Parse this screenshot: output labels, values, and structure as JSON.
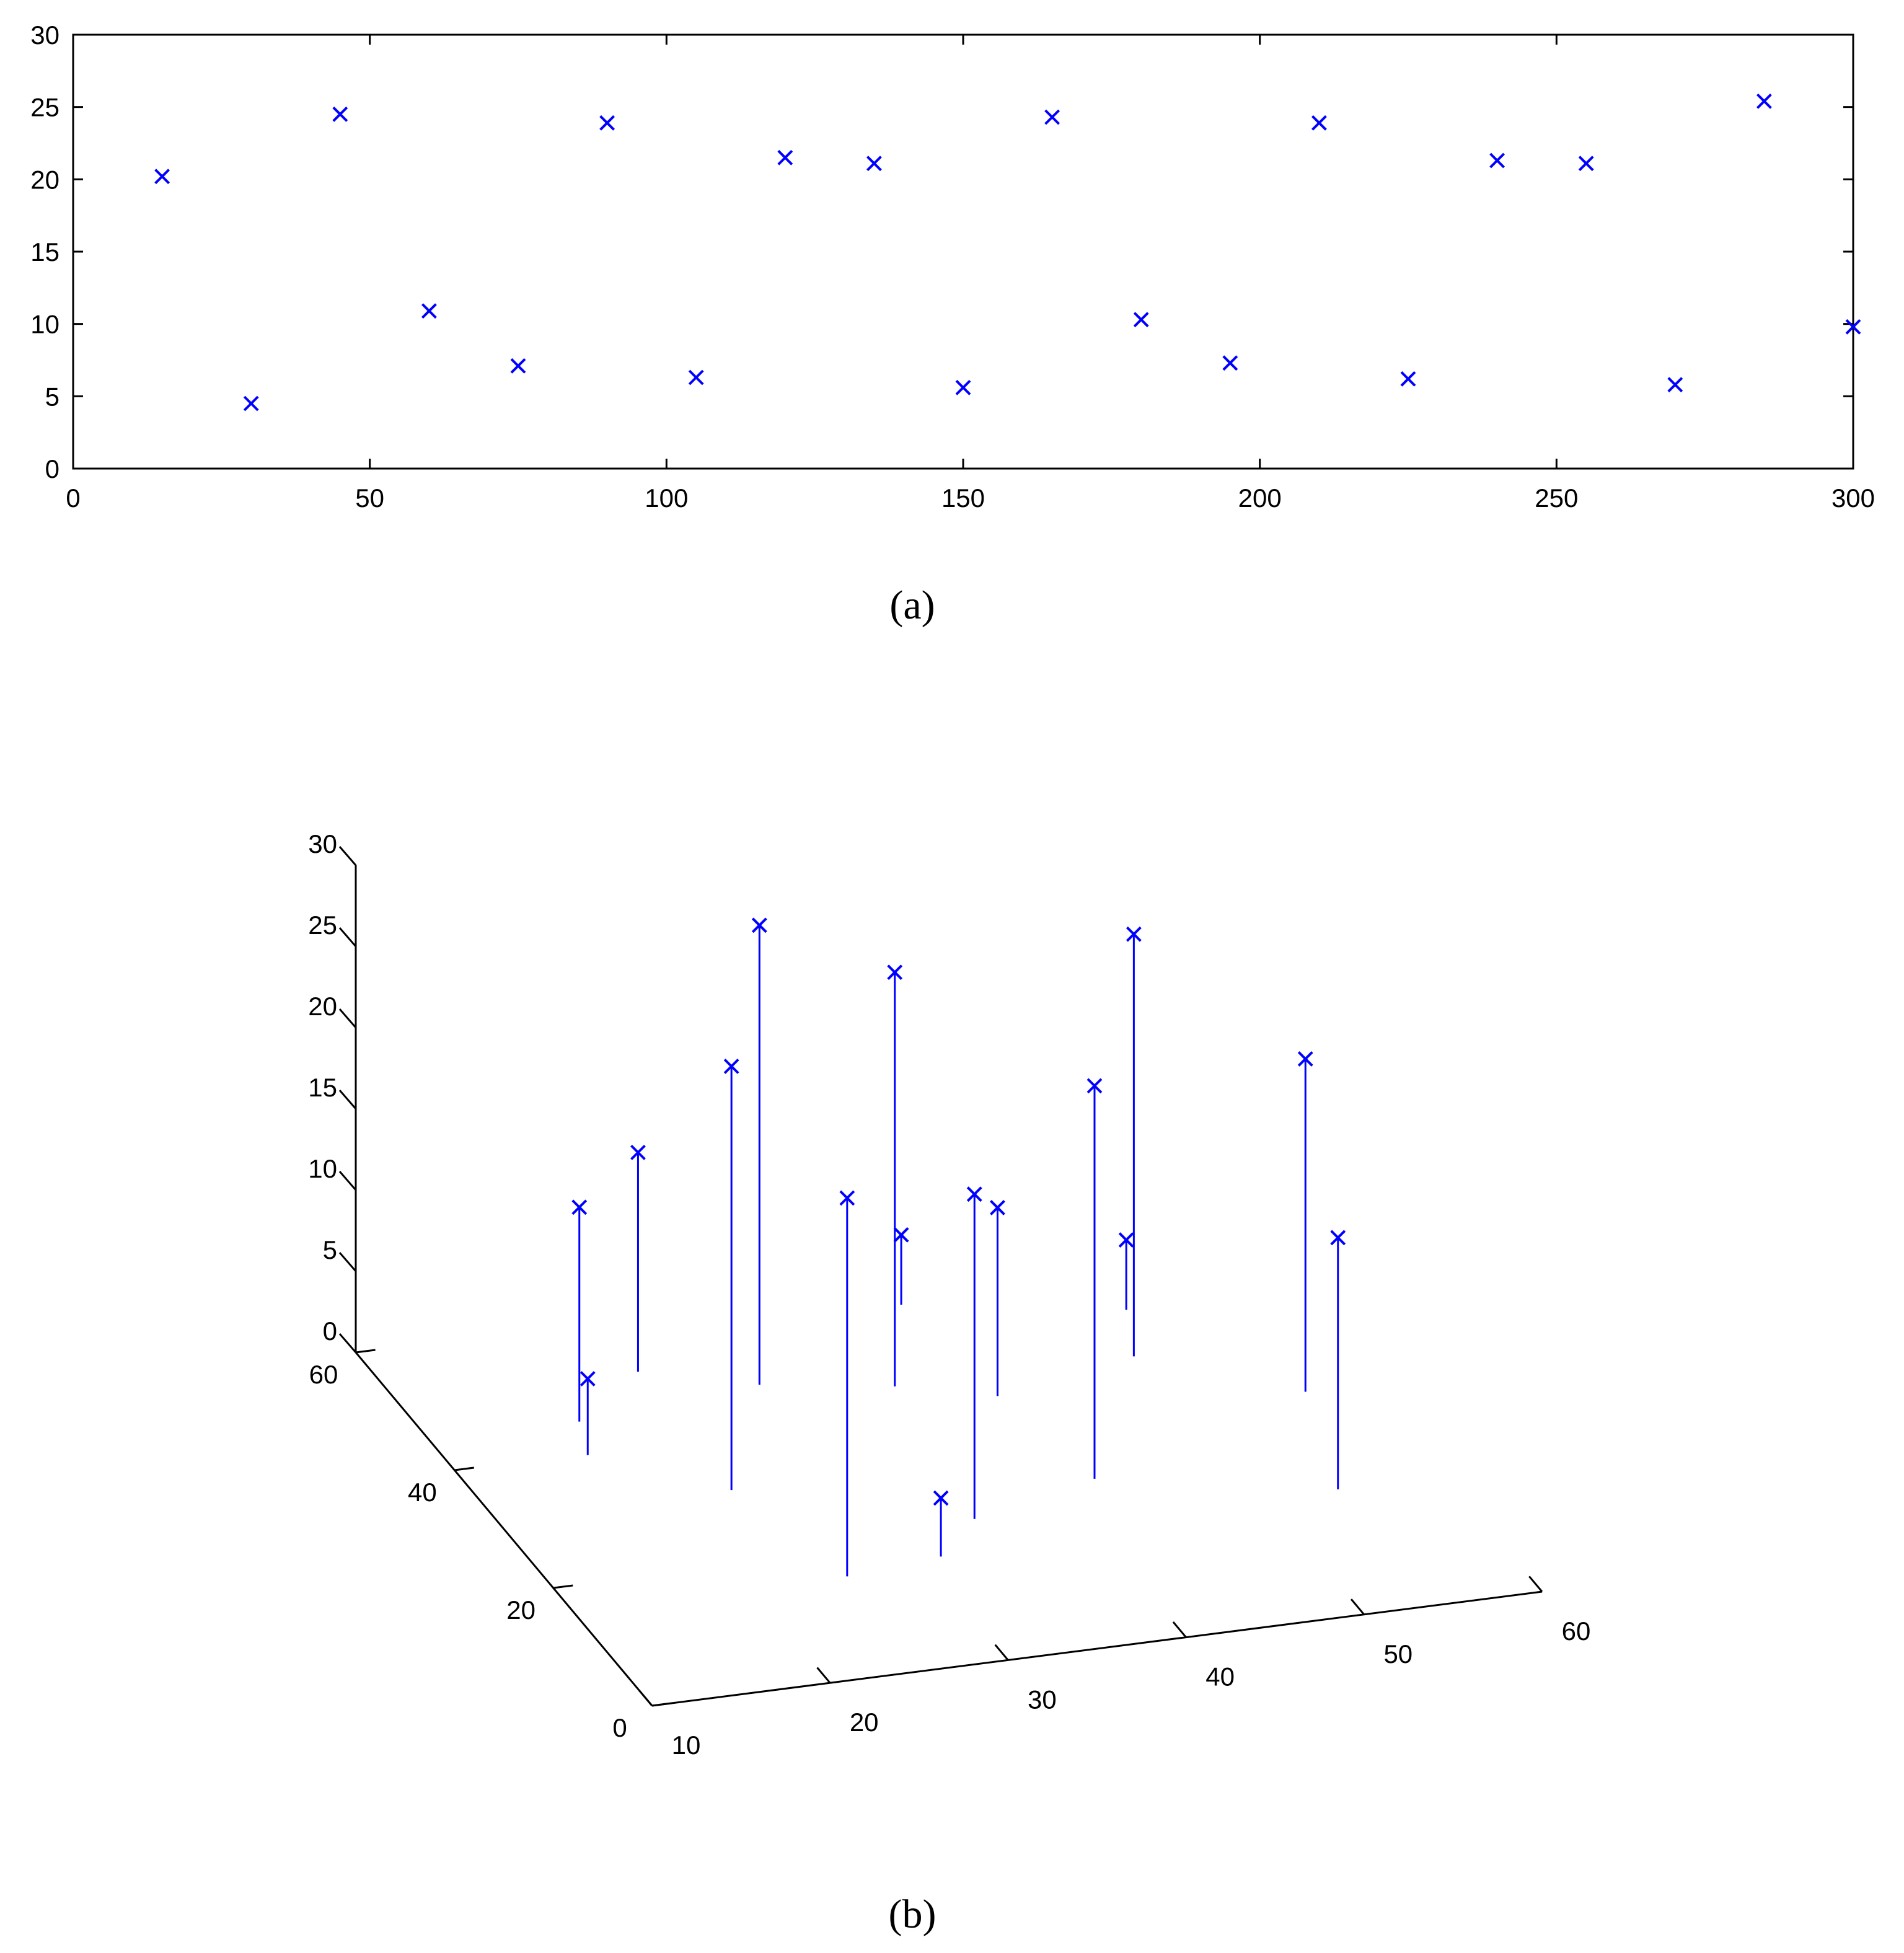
{
  "chart_data": [
    {
      "type": "scatter",
      "caption": "(a)",
      "marker": "x",
      "color": "#0000ff",
      "xlim": [
        0,
        300
      ],
      "ylim": [
        0,
        30
      ],
      "xticks": [
        0,
        50,
        100,
        150,
        200,
        250,
        300
      ],
      "yticks": [
        0,
        5,
        10,
        15,
        20,
        25,
        30
      ],
      "grid": false,
      "points": [
        [
          15,
          20.2
        ],
        [
          30,
          4.5
        ],
        [
          45,
          24.5
        ],
        [
          60,
          10.9
        ],
        [
          75,
          7.1
        ],
        [
          90,
          23.9
        ],
        [
          105,
          6.3
        ],
        [
          120,
          21.5
        ],
        [
          135,
          21.1
        ],
        [
          150,
          5.6
        ],
        [
          165,
          24.3
        ],
        [
          180,
          10.3
        ],
        [
          195,
          7.3
        ],
        [
          210,
          23.9
        ],
        [
          225,
          6.2
        ],
        [
          240,
          21.3
        ],
        [
          255,
          21.1
        ],
        [
          270,
          5.8
        ],
        [
          285,
          25.4
        ],
        [
          300,
          9.8
        ]
      ]
    },
    {
      "type": "scatter3d-stem",
      "caption": "(b)",
      "marker": "x",
      "color": "#0000ff",
      "xlim": [
        10,
        60
      ],
      "ylim": [
        0,
        60
      ],
      "zlim": [
        0,
        30
      ],
      "xticks": [
        10,
        20,
        30,
        40,
        50,
        60
      ],
      "yticks": [
        0,
        20,
        40,
        60
      ],
      "zticks": [
        0,
        5,
        10,
        15,
        20,
        25,
        30
      ],
      "grid": false,
      "points": [
        [
          18.4,
          45,
          13.2
        ],
        [
          23.2,
          31.5,
          26.1
        ],
        [
          17.4,
          39.7,
          4.7
        ],
        [
          25.4,
          16.0,
          23.3
        ],
        [
          23.5,
          51.5,
          13.5
        ],
        [
          29.1,
          47.1,
          28.3
        ],
        [
          34.3,
          22.3,
          20.0
        ],
        [
          31.0,
          17.2,
          3.6
        ],
        [
          35.9,
          44.2,
          25.5
        ],
        [
          40.7,
          40.7,
          11.6
        ],
        [
          39.7,
          56.6,
          4.3
        ],
        [
          42.1,
          26.1,
          24.2
        ],
        [
          54.0,
          19.7,
          15.5
        ],
        [
          49.3,
          44.1,
          26.0
        ],
        [
          50.9,
          51.4,
          4.3
        ],
        [
          56.5,
          35.3,
          20.5
        ]
      ]
    }
  ]
}
